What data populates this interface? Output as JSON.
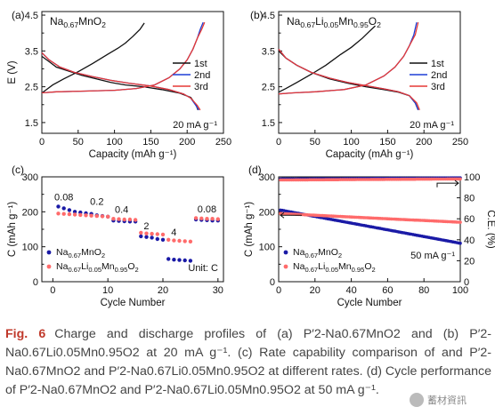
{
  "colors": {
    "black": "#111111",
    "blue": "#1f3fd6",
    "red": "#e53935",
    "pink": "#ff6b6b",
    "navy": "#1a1aa6"
  },
  "chart_data": [
    {
      "type": "line",
      "panel": "(a)",
      "title_main": "Na",
      "title_sub1": "0.67",
      "title_rest": "MnO",
      "title_sub2": "2",
      "xlabel": "Capacity (mAh g⁻¹)",
      "ylabel": "E (V)",
      "xlim": [
        0,
        250
      ],
      "ylim": [
        1.2,
        4.6
      ],
      "xticks": [
        "0",
        "50",
        "100",
        "150",
        "200",
        "250"
      ],
      "yticks": [
        "1.5",
        "2.5",
        "3.5",
        "4.5"
      ],
      "yticks_minor": [
        "2.0",
        "3.0",
        "4.0"
      ],
      "note": "20 mA g⁻¹",
      "legend": [
        "1st",
        "2nd",
        "3rd"
      ],
      "series": [
        {
          "name": "1st",
          "color": "#111111",
          "points": [
            [
              0,
              2.35
            ],
            [
              10,
              2.45
            ],
            [
              25,
              2.6
            ],
            [
              50,
              2.9
            ],
            [
              80,
              3.3
            ],
            [
              105,
              3.6
            ],
            [
              120,
              3.85
            ],
            [
              135,
              4.15
            ],
            [
              142,
              4.3
            ],
            [
              142,
              4.3
            ],
            [
              143,
              3.9
            ],
            [
              140,
              3.75
            ],
            [
              100,
              3.1
            ],
            [
              70,
              2.85
            ],
            [
              50,
              2.75
            ],
            [
              0,
              3.3
            ]
          ]
        },
        {
          "name": "2nd",
          "color": "#1f3fd6",
          "points": [
            [
              0,
              2.32
            ],
            [
              50,
              2.36
            ],
            [
              100,
              2.4
            ],
            [
              150,
              2.55
            ],
            [
              180,
              2.9
            ],
            [
              200,
              3.3
            ],
            [
              212,
              3.8
            ],
            [
              220,
              4.3
            ]
          ]
        },
        {
          "name": "3rd",
          "color": "#e53935",
          "points": [
            [
              0,
              2.32
            ],
            [
              50,
              2.36
            ],
            [
              100,
              2.4
            ],
            [
              150,
              2.55
            ],
            [
              180,
              2.9
            ],
            [
              202,
              3.3
            ],
            [
              214,
              3.8
            ],
            [
              222,
              4.3
            ]
          ]
        }
      ]
    },
    {
      "type": "line",
      "panel": "(b)",
      "title_main": "Na",
      "title_sub1": "0.67",
      "title_rest": "Li",
      "title_sub2": "0.05",
      "title_rest2": "Mn",
      "title_sub3": "0.95",
      "title_rest3": "O",
      "title_sub4": "2",
      "xlabel": "Capacity (mAh g⁻¹)",
      "xlim": [
        0,
        250
      ],
      "ylim": [
        1.2,
        4.6
      ],
      "xticks": [
        "0",
        "50",
        "100",
        "150",
        "200",
        "250"
      ],
      "yticks": [
        "1.5",
        "2.5",
        "3.5",
        "4.5"
      ],
      "yticks_minor": [
        "2.0",
        "3.0",
        "4.0"
      ],
      "note": "20 mA g⁻¹",
      "legend": [
        "1st",
        "2nd",
        "3rd"
      ]
    },
    {
      "type": "scatter",
      "panel": "(c)",
      "xlabel": "Cycle Number",
      "ylabel": "C (mAh g⁻¹)",
      "xlim": [
        -2,
        31
      ],
      "ylim": [
        0,
        300
      ],
      "xticks": [
        "0",
        "10",
        "20",
        "30"
      ],
      "yticks": [
        "0",
        "100",
        "200",
        "300"
      ],
      "yticks_minor": [
        "50",
        "150",
        "250"
      ],
      "rate_labels": [
        "0.08",
        "0.2",
        "0.4",
        "2",
        "4",
        "0.08"
      ],
      "note": "Unit: C",
      "legend": [
        {
          "name_main": "Na",
          "name_sub1": "0.67",
          "name_rest": "MnO",
          "name_sub2": "2"
        },
        {
          "name_main": "Na",
          "name_sub1": "0.67",
          "name_rest": "Li",
          "name_sub2": "0.05",
          "name_rest2": "Mn",
          "name_sub3": "0.95",
          "name_rest3": "O",
          "name_sub4": "2"
        }
      ],
      "series": [
        {
          "name": "Na0.67MnO2",
          "color": "#1a1aa6",
          "x": [
            1,
            2,
            3,
            4,
            5,
            6,
            7,
            8,
            9,
            10,
            11,
            12,
            13,
            14,
            15,
            16,
            17,
            18,
            19,
            20,
            21,
            22,
            23,
            24,
            25,
            26,
            27,
            28,
            29,
            30
          ],
          "y": [
            215,
            210,
            205,
            200,
            198,
            196,
            194,
            190,
            188,
            186,
            175,
            174,
            173,
            172,
            172,
            130,
            128,
            126,
            122,
            120,
            65,
            63,
            62,
            61,
            60,
            178,
            177,
            176,
            175,
            175
          ]
        },
        {
          "name": "Na0.67Li0.05Mn0.95O2",
          "color": "#ff6b6b",
          "x": [
            1,
            2,
            3,
            4,
            5,
            6,
            7,
            8,
            9,
            10,
            11,
            12,
            13,
            14,
            15,
            16,
            17,
            18,
            19,
            20,
            21,
            22,
            23,
            24,
            25,
            26,
            27,
            28,
            29,
            30
          ],
          "y": [
            195,
            194,
            193,
            192,
            191,
            190,
            189,
            188,
            187,
            186,
            180,
            179,
            178,
            178,
            177,
            140,
            138,
            137,
            136,
            135,
            120,
            118,
            117,
            116,
            115,
            182,
            181,
            180,
            180,
            179
          ]
        }
      ]
    },
    {
      "type": "scatter",
      "panel": "(d)",
      "xlabel": "Cycle Number",
      "ylabel": "C (mAh g⁻¹)",
      "ylabel_right": "C.E. (%)",
      "xlim": [
        0,
        100
      ],
      "ylim": [
        0,
        300
      ],
      "ylim_right": [
        0,
        100
      ],
      "xticks": [
        "0",
        "20",
        "40",
        "60",
        "80",
        "100"
      ],
      "yticks": [
        "0",
        "100",
        "200",
        "300"
      ],
      "yticks_right": [
        "0",
        "20",
        "40",
        "60",
        "80",
        "100"
      ],
      "note": "50 mA g⁻¹",
      "legend": [
        {
          "name_main": "Na",
          "name_sub1": "0.67",
          "name_rest": "MnO",
          "name_sub2": "2"
        },
        {
          "name_main": "Na",
          "name_sub1": "0.67",
          "name_rest": "Li",
          "name_sub2": "0.05",
          "name_rest2": "Mn",
          "name_sub3": "0.95",
          "name_rest3": "O",
          "name_sub4": "2"
        }
      ],
      "series": [
        {
          "name": "Na0.67MnO2",
          "color": "#1a1aa6",
          "start": 205,
          "end": 110
        },
        {
          "name": "Na0.67Li0.05Mn0.95O2",
          "color": "#ff6b6b",
          "start": 195,
          "end": 170
        },
        {
          "name": "CE Na0.67MnO2",
          "axis": "right",
          "color": "#1a1aa6",
          "start": 98,
          "end": 99
        },
        {
          "name": "CE Na0.67Li0.05Mn0.95O2",
          "axis": "right",
          "color": "#ff6b6b",
          "start": 97,
          "end": 98
        }
      ]
    }
  ],
  "caption": {
    "label": "Fig. 6",
    "text": "Charge and discharge profiles of (a) P′2-Na0.67MnO2 and (b) P′2-Na0.67Li0.05Mn0.95O2 at 20 mA g⁻¹. (c) Rate capability comparison of and P′2-Na0.67MnO2 and P′2-Na0.67Li0.05Mn0.95O2 at different rates. (d) Cycle performance of P′2-Na0.67MnO2 and P′2-Na0.67Li0.05Mn0.95O2 at 50 mA g⁻¹."
  },
  "watermark": "蓄材資訊"
}
